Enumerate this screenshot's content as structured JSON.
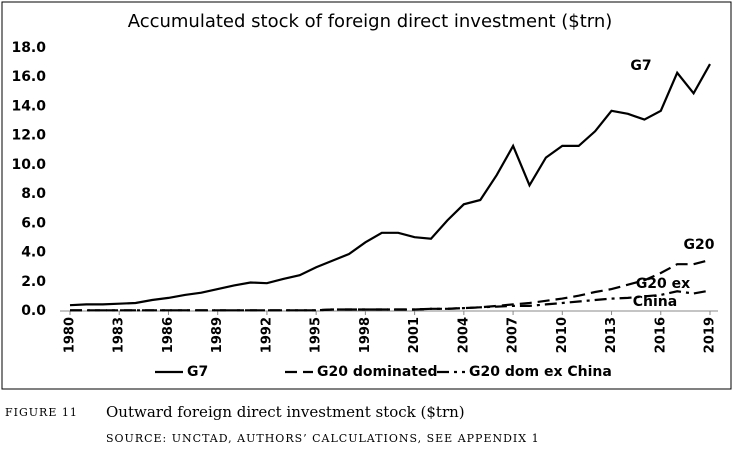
{
  "chart_data": {
    "type": "line",
    "title": "Accumulated stock of foreign direct investment ($trn)",
    "x": [
      1980,
      1981,
      1982,
      1983,
      1984,
      1985,
      1986,
      1987,
      1988,
      1989,
      1990,
      1991,
      1992,
      1993,
      1994,
      1995,
      1996,
      1997,
      1998,
      1999,
      2000,
      2001,
      2002,
      2003,
      2004,
      2005,
      2006,
      2007,
      2008,
      2009,
      2010,
      2011,
      2012,
      2013,
      2014,
      2015,
      2016,
      2017,
      2018,
      2019
    ],
    "series": [
      {
        "name": "G7",
        "color": "#000000",
        "dash": "solid",
        "values": [
          0.4,
          0.45,
          0.45,
          0.5,
          0.55,
          0.75,
          0.9,
          1.1,
          1.25,
          1.5,
          1.75,
          1.95,
          1.9,
          2.2,
          2.45,
          3.0,
          3.45,
          3.9,
          4.7,
          5.35,
          5.35,
          5.05,
          4.95,
          6.2,
          7.3,
          7.6,
          9.3,
          11.3,
          8.6,
          10.5,
          11.3,
          11.3,
          12.3,
          13.7,
          13.5,
          13.1,
          13.7,
          16.3,
          14.9,
          16.9
        ]
      },
      {
        "name": "G20 dominated",
        "color": "#000000",
        "dash": "dashed",
        "values": [
          0.05,
          0.05,
          0.05,
          0.05,
          0.05,
          0.05,
          0.05,
          0.05,
          0.05,
          0.05,
          0.05,
          0.05,
          0.05,
          0.05,
          0.05,
          0.05,
          0.1,
          0.1,
          0.1,
          0.1,
          0.1,
          0.1,
          0.15,
          0.15,
          0.2,
          0.25,
          0.35,
          0.45,
          0.55,
          0.7,
          0.85,
          1.05,
          1.3,
          1.5,
          1.8,
          2.1,
          2.6,
          3.2,
          3.2,
          3.5
        ]
      },
      {
        "name": "G20 dom ex China",
        "color": "#000000",
        "dash": "dashdot",
        "values": [
          0.05,
          0.05,
          0.05,
          0.05,
          0.05,
          0.05,
          0.05,
          0.05,
          0.05,
          0.05,
          0.05,
          0.05,
          0.05,
          0.05,
          0.05,
          0.05,
          0.1,
          0.1,
          0.1,
          0.1,
          0.1,
          0.1,
          0.15,
          0.15,
          0.2,
          0.25,
          0.3,
          0.35,
          0.35,
          0.45,
          0.55,
          0.65,
          0.75,
          0.85,
          0.9,
          1.0,
          1.1,
          1.35,
          1.2,
          1.4
        ]
      }
    ],
    "annotations": [
      "G7",
      "G20",
      "G20 ex",
      "China"
    ],
    "xlim": [
      1980,
      2019
    ],
    "xticks": [
      1980,
      1983,
      1986,
      1989,
      1992,
      1995,
      1998,
      2001,
      2004,
      2007,
      2010,
      2013,
      2016,
      2019
    ],
    "ylim": [
      0,
      18
    ],
    "yticks": [
      {
        "value": 0,
        "label": "0.0"
      },
      {
        "value": 2,
        "label": "2.0"
      },
      {
        "value": 4,
        "label": "4.0"
      },
      {
        "value": 6,
        "label": "6.0"
      },
      {
        "value": 8,
        "label": "8.0"
      },
      {
        "value": 10,
        "label": "10.0"
      },
      {
        "value": 12,
        "label": "12.0"
      },
      {
        "value": 14,
        "label": "14.0"
      },
      {
        "value": 16,
        "label": "16.0"
      },
      {
        "value": 18,
        "label": "18.0"
      }
    ],
    "grid": false,
    "legend": "bottom"
  },
  "caption": {
    "label": "FIGURE 11",
    "text": "Outward foreign direct investment stock ($trn)",
    "source": "SOURCE: UNCTAD, AUTHORS’ CALCULATIONS, SEE APPENDIX 1"
  }
}
